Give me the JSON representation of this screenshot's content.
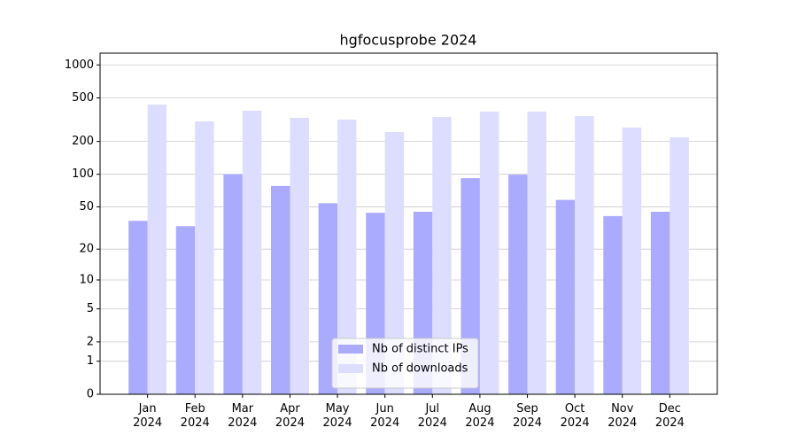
{
  "chart_data": {
    "type": "bar",
    "title": "hgfocusprobe 2024",
    "categories": [
      "Jan\n2024",
      "Feb\n2024",
      "Mar\n2024",
      "Apr\n2024",
      "May\n2024",
      "Jun\n2024",
      "Jul\n2024",
      "Aug\n2024",
      "Sep\n2024",
      "Oct\n2024",
      "Nov\n2024",
      "Dec\n2024"
    ],
    "series": [
      {
        "name": "Nb of distinct IPs",
        "color": "#aaaaff",
        "values": [
          37,
          33,
          100,
          78,
          54,
          44,
          45,
          92,
          99,
          58,
          41,
          45
        ]
      },
      {
        "name": "Nb of downloads",
        "color": "#ddddff",
        "values": [
          435,
          305,
          382,
          329,
          317,
          244,
          335,
          375,
          375,
          341,
          268,
          218
        ]
      }
    ],
    "yscale": "log1p",
    "ylim": [
      0,
      1280
    ],
    "yticks": [
      0,
      1,
      2,
      5,
      10,
      20,
      50,
      100,
      200,
      500,
      1000
    ],
    "grid": true,
    "legend": "lower center"
  }
}
